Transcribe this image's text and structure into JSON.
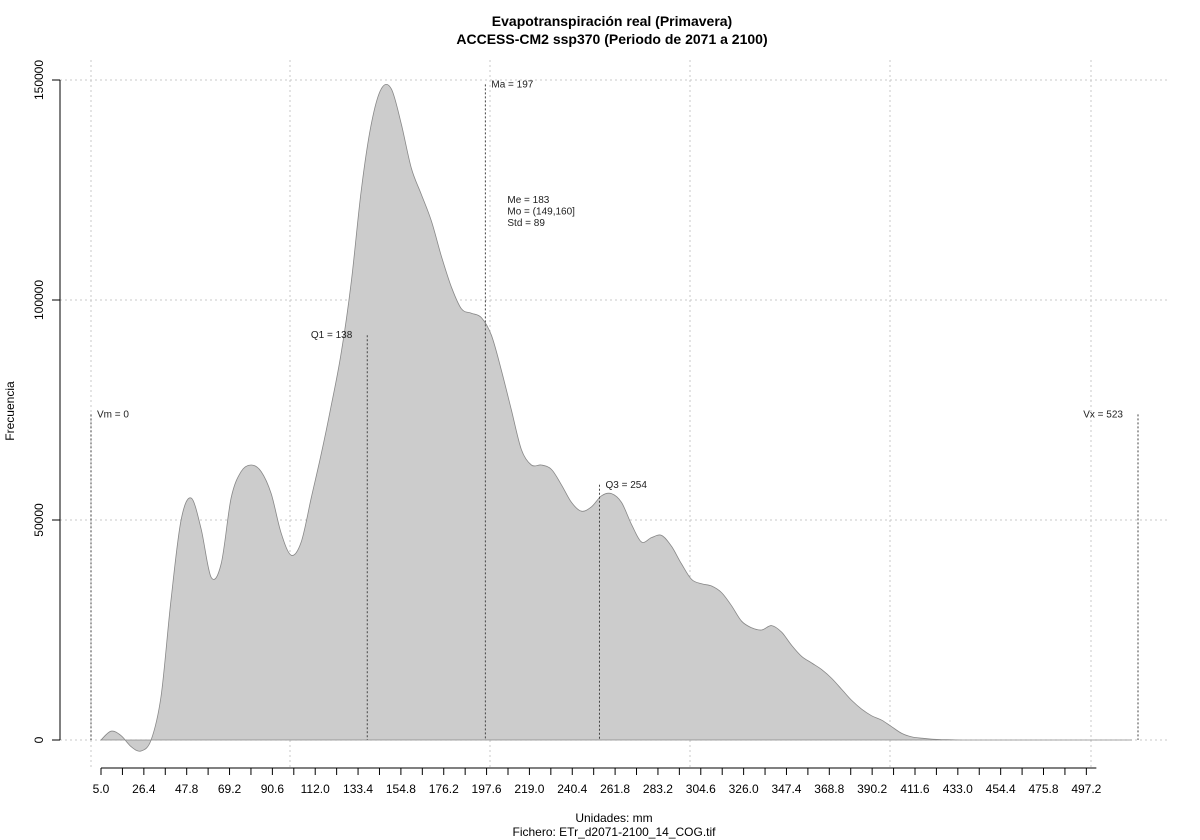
{
  "chart_data": {
    "type": "area",
    "title": "Evapotranspiración real (Primavera)",
    "subtitle": "ACCESS-CM2 ssp370 (Periodo de 2071 a 2100)",
    "xlabel": "Unidades: mm",
    "xlabel2": "Fichero: ETr_d2071-2100_14_COG.tif",
    "ylabel": "Frecuencia",
    "xlim": [
      0,
      523
    ],
    "ylim": [
      0,
      150000
    ],
    "grid": true,
    "fill_color": "#cccccc",
    "line_color": "#888888",
    "y_ticks": [
      0,
      50000,
      100000,
      150000
    ],
    "y_tick_labels": [
      "0",
      "50000",
      "100000",
      "150000"
    ],
    "x_ticks": [
      5.0,
      26.4,
      47.8,
      69.2,
      90.6,
      112.0,
      133.4,
      154.8,
      176.2,
      197.6,
      219.0,
      240.4,
      261.8,
      283.2,
      304.6,
      326.0,
      347.4,
      368.8,
      390.2,
      411.6,
      433.0,
      454.4,
      475.8,
      497.2
    ],
    "x_tick_labels": [
      "5.0",
      "26.4",
      "47.8",
      "69.2",
      "90.6",
      "112.0",
      "133.4",
      "154.8",
      "176.2",
      "197.6",
      "219.0",
      "240.4",
      "261.8",
      "283.2",
      "304.6",
      "326.0",
      "347.4",
      "368.8",
      "390.2",
      "411.6",
      "433.0",
      "454.4",
      "475.8",
      "497.2"
    ],
    "x": [
      5,
      10,
      15,
      20,
      25,
      30,
      35,
      40,
      45,
      50,
      55,
      60,
      65,
      70,
      75,
      80,
      85,
      90,
      95,
      100,
      105,
      110,
      115,
      120,
      125,
      130,
      135,
      140,
      145,
      150,
      155,
      160,
      165,
      170,
      175,
      180,
      185,
      190,
      195,
      200,
      205,
      210,
      215,
      220,
      225,
      230,
      235,
      240,
      245,
      250,
      255,
      260,
      265,
      270,
      275,
      280,
      285,
      290,
      295,
      300,
      305,
      310,
      315,
      320,
      325,
      330,
      335,
      340,
      345,
      350,
      355,
      360,
      365,
      370,
      375,
      380,
      385,
      390,
      395,
      400,
      405,
      410,
      415,
      420,
      425,
      430,
      435,
      440,
      445,
      450,
      455,
      460,
      470,
      480,
      490,
      500,
      510,
      520
    ],
    "y": [
      0,
      2000,
      1000,
      -1500,
      -2500,
      0,
      10000,
      32000,
      50000,
      55000,
      48000,
      37000,
      40000,
      55000,
      61000,
      62500,
      61000,
      56000,
      47000,
      42000,
      45000,
      55000,
      65000,
      76000,
      88000,
      104000,
      125000,
      140000,
      148000,
      148000,
      140000,
      130000,
      124000,
      118000,
      110000,
      103000,
      98000,
      97000,
      96000,
      92000,
      84000,
      75000,
      66000,
      62500,
      62500,
      61500,
      58000,
      54000,
      52000,
      53000,
      55500,
      56000,
      54000,
      49000,
      45000,
      46000,
      46500,
      44000,
      40000,
      36500,
      35500,
      35000,
      33500,
      30500,
      27000,
      25500,
      25000,
      26000,
      24500,
      21500,
      19000,
      17500,
      16000,
      14000,
      11500,
      9000,
      7000,
      5500,
      4500,
      3000,
      1500,
      700,
      400,
      200,
      100,
      50,
      0,
      0,
      0,
      0,
      0,
      0,
      0,
      0,
      0,
      0,
      0,
      0
    ],
    "vlines": [
      {
        "label": "Vm = 0",
        "x": 0,
        "y_top": 74000,
        "label_side": "right"
      },
      {
        "label": "Q1 = 138",
        "x": 138,
        "y_top": 92000,
        "label_side": "left"
      },
      {
        "label": "Ma = 197",
        "x": 197,
        "y_top": 149000,
        "label_side": "right"
      },
      {
        "label": "Q3 = 254",
        "x": 254,
        "y_top": 58000,
        "label_side": "right"
      },
      {
        "label": "Vx = 523",
        "x": 523,
        "y_top": 74000,
        "label_side": "left"
      }
    ],
    "stats_annotation": {
      "lines": [
        "Me = 183",
        "Mo = (149,160]",
        "Std = 89"
      ],
      "x": 208,
      "y": 122000
    }
  }
}
